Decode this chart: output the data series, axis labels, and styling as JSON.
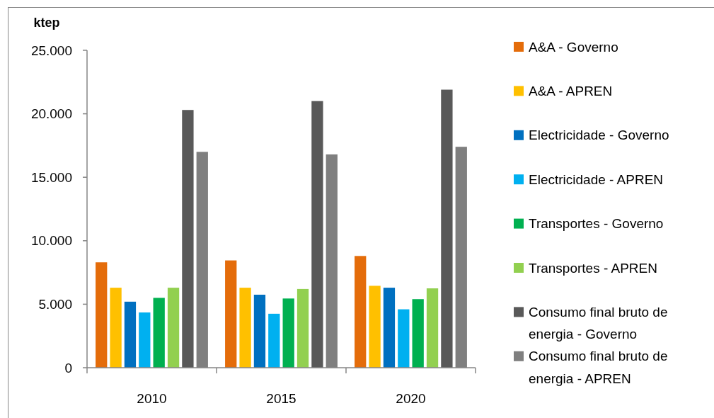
{
  "chart_data": {
    "type": "bar",
    "ylabel": "ktep",
    "categories": [
      "2010",
      "2015",
      "2020"
    ],
    "series": [
      {
        "name": "A&A - Governo",
        "color": "#e46c0a",
        "values": [
          8300,
          8450,
          8800
        ]
      },
      {
        "name": "A&A - APREN",
        "color": "#ffc000",
        "values": [
          6300,
          6300,
          6450
        ]
      },
      {
        "name": "Electricidade - Governo",
        "color": "#0070c0",
        "values": [
          5200,
          5750,
          6300
        ]
      },
      {
        "name": "Electricidade - APREN",
        "color": "#00b0f0",
        "values": [
          4350,
          4250,
          4600
        ]
      },
      {
        "name": "Transportes - Governo",
        "color": "#00b050",
        "values": [
          5500,
          5450,
          5400
        ]
      },
      {
        "name": "Transportes - APREN",
        "color": "#92d050",
        "values": [
          6300,
          6200,
          6250
        ]
      },
      {
        "name": "Consumo final bruto de energia - Governo",
        "color": "#595959",
        "values": [
          20300,
          21000,
          21900
        ]
      },
      {
        "name": "Consumo final bruto de energia - APREN",
        "color": "#7f7f7f",
        "values": [
          17000,
          16800,
          17400
        ]
      }
    ],
    "ylim": [
      0,
      25000
    ],
    "yticks": [
      0,
      {
        "value": 5000,
        "label": "5.000"
      },
      {
        "value": 10000,
        "label": "10.000"
      },
      {
        "value": 15000,
        "label": "15.000"
      },
      {
        "value": 20000,
        "label": "20.000"
      },
      {
        "value": 25000,
        "label": "25.000"
      }
    ],
    "legend": "right"
  }
}
